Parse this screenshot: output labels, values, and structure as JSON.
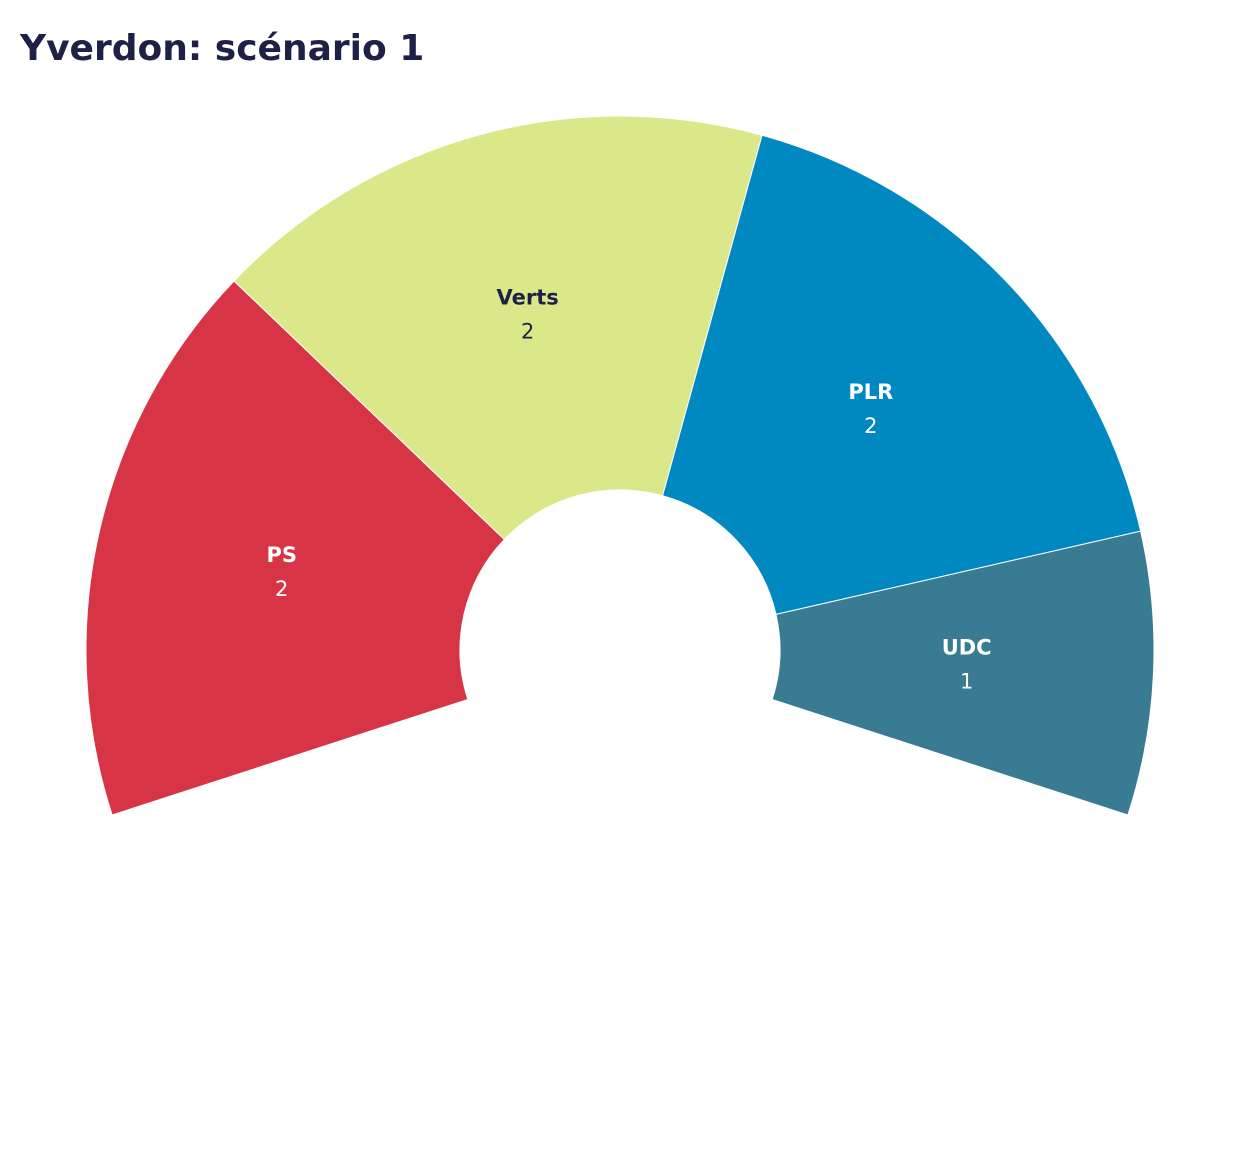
{
  "chart_data": {
    "type": "donut",
    "title": "Yverdon: scénario 1",
    "categories": [
      "PS",
      "Verts",
      "PLR",
      "UDC"
    ],
    "values": [
      2,
      2,
      2,
      1
    ],
    "colors": [
      "#d73545",
      "#dbe88a",
      "#0089c0",
      "#3a7b94"
    ]
  }
}
